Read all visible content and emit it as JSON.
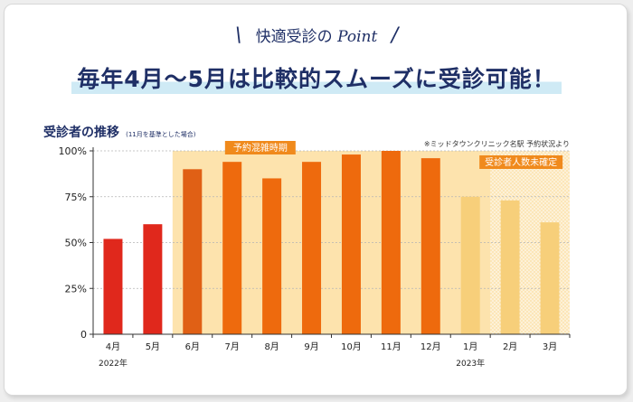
{
  "header": {
    "point_label": "快適受診の",
    "point_word": "Point",
    "headline": "毎年4月〜5月は比較的スムーズに受診可能！"
  },
  "chart_header": {
    "title": "受診者の推移",
    "note": "(11月を基準とした場合)",
    "source": "※ミッドタウンクリニック名駅 予約状況より"
  },
  "chart_data": {
    "type": "bar",
    "categories": [
      "4月",
      "5月",
      "6月",
      "7月",
      "8月",
      "9月",
      "10月",
      "11月",
      "12月",
      "1月",
      "2月",
      "3月"
    ],
    "values": [
      52,
      60,
      90,
      94,
      85,
      94,
      98,
      100,
      96,
      75,
      73,
      61
    ],
    "ylim": [
      0,
      100
    ],
    "yticks": [
      0,
      25,
      50,
      75,
      100
    ],
    "ytick_labels": [
      "0",
      "25%",
      "50%",
      "75%",
      "100%"
    ],
    "year_labels": [
      {
        "index": 0,
        "label": "2022年"
      },
      {
        "index": 9,
        "label": "2023年"
      }
    ],
    "regions": [
      {
        "label": "予約混雑時期",
        "from_index": 2,
        "to_index": 11
      },
      {
        "label": "受診者人数未確定",
        "from_index": 10,
        "to_index": 11
      }
    ],
    "bar_groups": [
      "low",
      "low",
      "busy",
      "busy",
      "busy",
      "busy",
      "busy",
      "busy",
      "busy",
      "estimate",
      "estimate",
      "estimate"
    ],
    "colors": {
      "low": "#e0281c",
      "busy": "#ee6a0d",
      "busy_first": "#e06015",
      "estimate": "#f7cf7a",
      "busy_band": "#fde3ad",
      "label_box": "#f08a1c",
      "axis": "#333333"
    }
  }
}
